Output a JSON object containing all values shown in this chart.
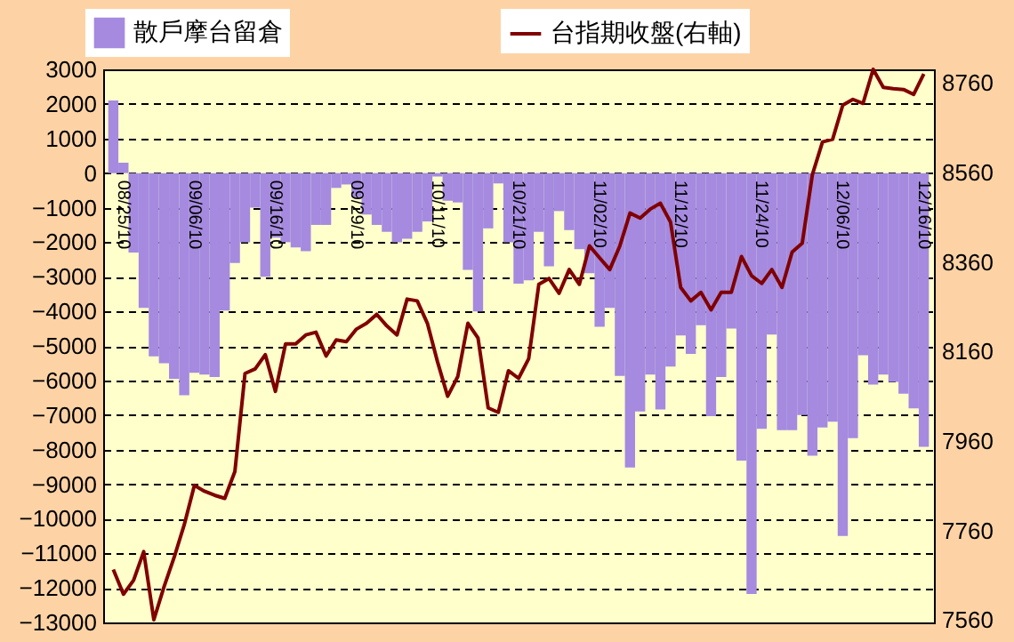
{
  "chart_data": {
    "type": "bar",
    "categories": [
      null,
      "08/25/10",
      null,
      null,
      null,
      null,
      null,
      null,
      "09/06/10",
      null,
      null,
      null,
      null,
      null,
      null,
      null,
      "09/16/10",
      null,
      null,
      null,
      null,
      null,
      null,
      null,
      "09/29/10",
      null,
      null,
      null,
      null,
      null,
      null,
      null,
      "10/11/10",
      null,
      null,
      null,
      null,
      null,
      null,
      null,
      "10/21/10",
      null,
      null,
      null,
      null,
      null,
      null,
      null,
      "11/02/10",
      null,
      null,
      null,
      null,
      null,
      null,
      null,
      "11/12/10",
      null,
      null,
      null,
      null,
      null,
      null,
      null,
      "11/24/10",
      null,
      null,
      null,
      null,
      null,
      null,
      null,
      "12/06/10",
      null,
      null,
      null,
      null,
      null,
      null,
      null,
      "12/16/10"
    ],
    "series": [
      {
        "name": "散戶摩台留倉",
        "color": "#a58ae0",
        "values": [
          2100,
          300,
          -2300,
          -3900,
          -5300,
          -5500,
          -5950,
          -6430,
          -5780,
          -5830,
          -5900,
          -3980,
          -2600,
          -2000,
          -1000,
          -3000,
          -1870,
          -2000,
          -2150,
          -2260,
          -1500,
          -1500,
          -430,
          -330,
          -700,
          -1200,
          -1500,
          -1700,
          -2000,
          -1900,
          -1700,
          -1400,
          -100,
          -800,
          -850,
          -2800,
          -4000,
          -1600,
          -300,
          -2000,
          -3200,
          -3100,
          -1700,
          -2700,
          -1100,
          -1650,
          -2200,
          -2900,
          -4450,
          -3900,
          -5870,
          -8520,
          -6900,
          -5830,
          -6840,
          -5600,
          -4700,
          -5230,
          -4400,
          -7030,
          -5900,
          -4500,
          -8320,
          -12180,
          -7400,
          -4670,
          -7440,
          -7440,
          -7000,
          -8180,
          -7360,
          -7190,
          -10500,
          -7670,
          -5270,
          -6120,
          -5830,
          -6040,
          -6380,
          -6810,
          -7920
        ]
      },
      {
        "name": "台指期收盤(右軸)",
        "type": "line",
        "axis": "y2",
        "color": "#800000",
        "values": [
          7673,
          7618,
          7649,
          7713,
          7561,
          7634,
          7700,
          7773,
          7861,
          7848,
          7839,
          7832,
          7892,
          8111,
          8121,
          8153,
          8071,
          8177,
          8177,
          8197,
          8203,
          8150,
          8186,
          8182,
          8210,
          8223,
          8243,
          8217,
          8197,
          8277,
          8273,
          8223,
          8137,
          8060,
          8104,
          8223,
          8190,
          8034,
          8024,
          8117,
          8100,
          8144,
          8310,
          8323,
          8290,
          8343,
          8310,
          8396,
          8369,
          8343,
          8396,
          8469,
          8458,
          8478,
          8491,
          8449,
          8303,
          8273,
          8292,
          8253,
          8292,
          8292,
          8372,
          8329,
          8312,
          8343,
          8303,
          8382,
          8402,
          8555,
          8628,
          8634,
          8710,
          8723,
          8714,
          8790,
          8750,
          8747,
          8745,
          8734,
          8780
        ]
      }
    ],
    "ylim": [
      -13000,
      3000
    ],
    "yticks": [
      -13000,
      -12000,
      -11000,
      -10000,
      -9000,
      -8000,
      -7000,
      -6000,
      -5000,
      -4000,
      -3000,
      -2000,
      -1000,
      0,
      1000,
      2000,
      3000
    ],
    "y2lim": [
      7555,
      8790
    ],
    "y2ticks": [
      7560,
      7760,
      7960,
      8160,
      8360,
      8560,
      8760
    ],
    "grid": true,
    "legend": "top",
    "line_style": "solid",
    "marker": "none"
  }
}
